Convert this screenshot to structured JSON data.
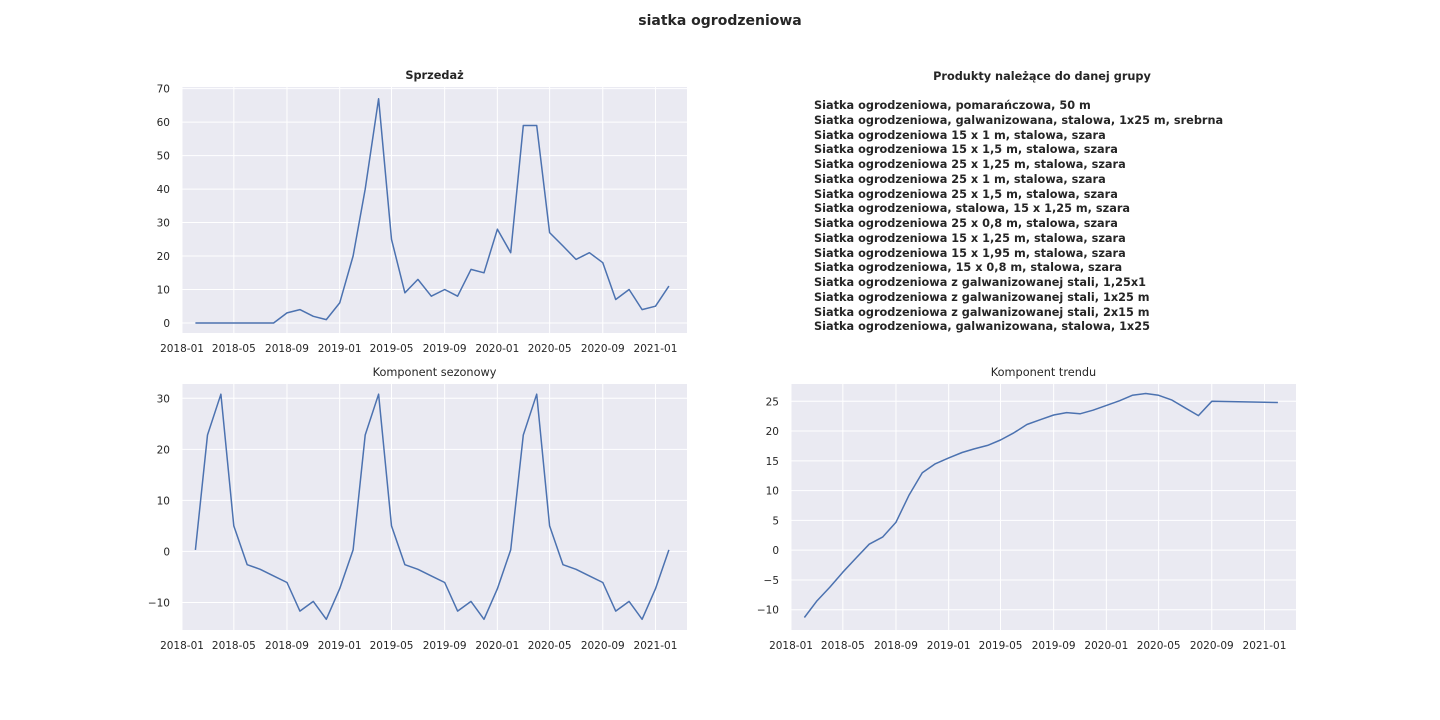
{
  "figure": {
    "title": "siatka ogrodzeniowa",
    "products_title": "Produkty należące do danej grupy",
    "products": [
      "Siatka ogrodzeniowa, pomarańczowa, 50 m",
      "Siatka ogrodzeniowa, galwanizowana, stalowa, 1x25 m, srebrna",
      "Siatka ogrodzeniowa 15 x 1 m, stalowa, szara",
      "Siatka ogrodzeniowa 15 x 1,5 m, stalowa, szara",
      "Siatka ogrodzeniowa 25 x 1,25 m, stalowa, szara",
      "Siatka ogrodzeniowa 25 x 1 m, stalowa, szara",
      "Siatka ogrodzeniowa 25 x 1,5 m, stalowa, szara",
      "Siatka ogrodzeniowa, stalowa, 15 x 1,25 m, szara",
      "Siatka ogrodzeniowa 25 x 0,8 m, stalowa, szara",
      "Siatka ogrodzeniowa 15 x 1,25 m, stalowa, szara",
      "Siatka ogrodzeniowa 15 x 1,95 m, stalowa, szara",
      "Siatka ogrodzeniowa, 15 x 0,8 m, stalowa, szara",
      "Siatka ogrodzeniowa z galwanizowanej stali, 1,25x1",
      "Siatka ogrodzeniowa z galwanizowanej stali, 1x25 m",
      "Siatka ogrodzeniowa z galwanizowanej stali, 2x15 m",
      "Siatka ogrodzeniowa, galwanizowana, stalowa, 1x25"
    ]
  },
  "chart_data": [
    {
      "type": "line",
      "title": "Sprzedaż",
      "title_bold": true,
      "line_color": "#4c72b0",
      "background": "#eaeaf2",
      "grid": true,
      "x": [
        "2018-02",
        "2018-03",
        "2018-04",
        "2018-05",
        "2018-06",
        "2018-07",
        "2018-08",
        "2018-09",
        "2018-10",
        "2018-11",
        "2018-12",
        "2019-01",
        "2019-02",
        "2019-03",
        "2019-04",
        "2019-05",
        "2019-06",
        "2019-07",
        "2019-08",
        "2019-09",
        "2019-10",
        "2019-11",
        "2019-12",
        "2020-01",
        "2020-02",
        "2020-03",
        "2020-04",
        "2020-05",
        "2020-06",
        "2020-07",
        "2020-08",
        "2020-09",
        "2020-10",
        "2020-11",
        "2020-12",
        "2021-01",
        "2021-02"
      ],
      "values": [
        0,
        0,
        0,
        0,
        0,
        0,
        0,
        3,
        4,
        2,
        1,
        6,
        20,
        40,
        67,
        25,
        9,
        13,
        8,
        10,
        8,
        16,
        15,
        28,
        21,
        59,
        59,
        27,
        23,
        19,
        21,
        18,
        7,
        10,
        4,
        5,
        11
      ],
      "xlim": [
        "2018-01-01",
        "2021-03-15"
      ],
      "ylim": [
        -3,
        70.5
      ],
      "yticks": [
        0,
        10,
        20,
        30,
        40,
        50,
        60,
        70
      ],
      "ytick_labels": [
        "0",
        "10",
        "20",
        "30",
        "40",
        "50",
        "60",
        "70"
      ],
      "xticks": [
        "2018-01",
        "2018-05",
        "2018-09",
        "2019-01",
        "2019-05",
        "2019-09",
        "2020-01",
        "2020-05",
        "2020-09",
        "2021-01"
      ]
    },
    {
      "type": "line",
      "title": "Komponent sezonowy",
      "title_bold": false,
      "line_color": "#4c72b0",
      "background": "#eaeaf2",
      "grid": true,
      "x": [
        "2018-02",
        "2018-03",
        "2018-04",
        "2018-05",
        "2018-06",
        "2018-07",
        "2018-08",
        "2018-09",
        "2018-10",
        "2018-11",
        "2018-12",
        "2019-01",
        "2019-02",
        "2019-03",
        "2019-04",
        "2019-05",
        "2019-06",
        "2019-07",
        "2019-08",
        "2019-09",
        "2019-10",
        "2019-11",
        "2019-12",
        "2020-01",
        "2020-02",
        "2020-03",
        "2020-04",
        "2020-05",
        "2020-06",
        "2020-07",
        "2020-08",
        "2020-09",
        "2020-10",
        "2020-11",
        "2020-12",
        "2021-01",
        "2021-02"
      ],
      "values": [
        0.3,
        22.8,
        30.8,
        5.0,
        -2.6,
        -3.5,
        -4.8,
        -6.1,
        -11.7,
        -9.8,
        -13.3,
        -7.3,
        0.3,
        22.8,
        30.8,
        5.0,
        -2.6,
        -3.5,
        -4.8,
        -6.1,
        -11.7,
        -9.8,
        -13.3,
        -7.3,
        0.3,
        22.8,
        30.8,
        5.0,
        -2.6,
        -3.5,
        -4.8,
        -6.1,
        -11.7,
        -9.8,
        -13.3,
        -7.3,
        0.3
      ],
      "xlim": [
        "2018-01-01",
        "2021-03-15"
      ],
      "ylim": [
        -15.4,
        32.8
      ],
      "yticks": [
        -10,
        0,
        10,
        20,
        30
      ],
      "ytick_labels": [
        "−10",
        "0",
        "10",
        "20",
        "30"
      ],
      "xticks": [
        "2018-01",
        "2018-05",
        "2018-09",
        "2019-01",
        "2019-05",
        "2019-09",
        "2020-01",
        "2020-05",
        "2020-09",
        "2021-01"
      ]
    },
    {
      "type": "line",
      "title": "Komponent trendu",
      "title_bold": false,
      "line_color": "#4c72b0",
      "background": "#eaeaf2",
      "grid": true,
      "x": [
        "2018-02",
        "2018-03",
        "2018-04",
        "2018-05",
        "2018-06",
        "2018-07",
        "2018-08",
        "2018-09",
        "2018-10",
        "2018-11",
        "2018-12",
        "2019-01",
        "2019-02",
        "2019-03",
        "2019-04",
        "2019-05",
        "2019-06",
        "2019-07",
        "2019-08",
        "2019-09",
        "2019-10",
        "2019-11",
        "2019-12",
        "2020-01",
        "2020-02",
        "2020-03",
        "2020-04",
        "2020-05",
        "2020-06",
        "2020-07",
        "2020-08",
        "2020-09",
        "2021-02"
      ],
      "values": [
        -11.3,
        -8.6,
        -6.2,
        -3.7,
        -1.3,
        1.0,
        2.2,
        4.7,
        9.2,
        13.0,
        14.5,
        15.5,
        16.4,
        17.0,
        17.6,
        18.5,
        19.7,
        21.1,
        21.9,
        22.7,
        23.1,
        22.9,
        23.5,
        24.3,
        25.1,
        26.0,
        26.3,
        26.0,
        25.2,
        23.9,
        22.6,
        25.0,
        24.8
      ],
      "xlim": [
        "2018-01-01",
        "2021-03-15"
      ],
      "ylim": [
        -13.4,
        27.9
      ],
      "yticks": [
        -10,
        -5,
        0,
        5,
        10,
        15,
        20,
        25
      ],
      "ytick_labels": [
        "−10",
        "−5",
        "0",
        "5",
        "10",
        "15",
        "20",
        "25"
      ],
      "xticks": [
        "2018-01",
        "2018-05",
        "2018-09",
        "2019-01",
        "2019-05",
        "2019-09",
        "2020-01",
        "2020-05",
        "2020-09",
        "2021-01"
      ]
    }
  ]
}
